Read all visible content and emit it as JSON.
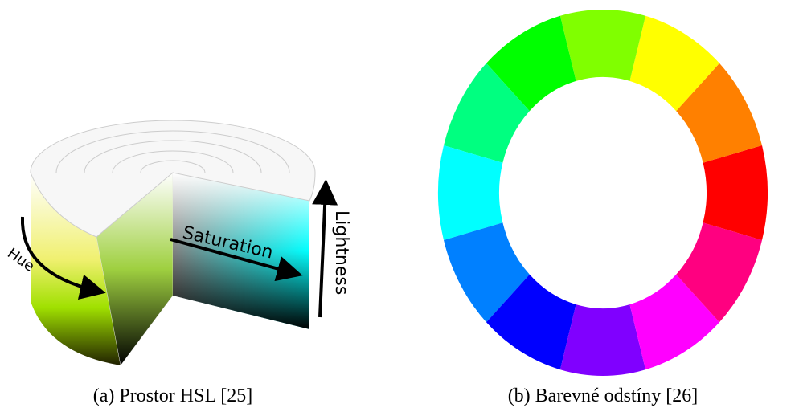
{
  "figures": [
    {
      "caption": "(a) Prostor HSL [25]",
      "labels": {
        "hue": "Hue",
        "saturation": "Saturation",
        "lightness": "Lightness"
      }
    },
    {
      "caption": "(b) Barevné odstíny [26]"
    }
  ]
}
